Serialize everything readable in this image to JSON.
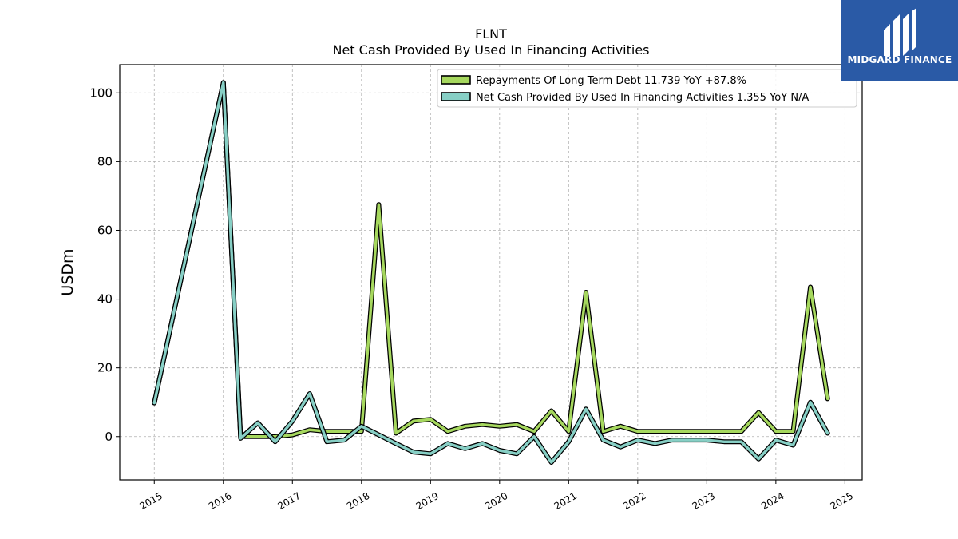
{
  "chart_data": {
    "type": "line",
    "title": "FLNT",
    "subtitle": "Net Cash Provided By Used In Financing Activities",
    "xlabel": "",
    "ylabel": "USDm",
    "xlim": [
      2014.5,
      2025.25
    ],
    "ylim": [
      -12.6,
      108.2
    ],
    "x_ticks": [
      "2015",
      "2016",
      "2017",
      "2018",
      "2019",
      "2020",
      "2021",
      "2022",
      "2023",
      "2024",
      "2025"
    ],
    "y_ticks": [
      "0",
      "20",
      "40",
      "60",
      "80",
      "100"
    ],
    "grid": true,
    "legend_position": "top-right",
    "series": [
      {
        "name": "Repayments Of Long Term Debt",
        "legend_label": "Repayments Of Long Term Debt  11.739 YoY +87.8%",
        "color": "#a6d85e",
        "points": [
          [
            "2015-01-01",
            9.8
          ],
          [
            "2016-01-01",
            103.0
          ],
          [
            "2016-04-01",
            0.0
          ],
          [
            "2016-07-01",
            0.0
          ],
          [
            "2016-10-01",
            0.0
          ],
          [
            "2017-01-01",
            0.5
          ],
          [
            "2017-04-01",
            2.0
          ],
          [
            "2017-07-01",
            1.5
          ],
          [
            "2017-10-01",
            1.5
          ],
          [
            "2018-01-01",
            1.5
          ],
          [
            "2018-04-01",
            67.5
          ],
          [
            "2018-07-01",
            1.0
          ],
          [
            "2018-10-01",
            4.5
          ],
          [
            "2019-01-01",
            5.0
          ],
          [
            "2019-04-01",
            1.5
          ],
          [
            "2019-07-01",
            3.0
          ],
          [
            "2019-10-01",
            3.5
          ],
          [
            "2020-01-01",
            3.0
          ],
          [
            "2020-04-01",
            3.5
          ],
          [
            "2020-07-01",
            1.5
          ],
          [
            "2020-10-01",
            7.5
          ],
          [
            "2021-01-01",
            1.5
          ],
          [
            "2021-04-01",
            42.0
          ],
          [
            "2021-07-01",
            1.5
          ],
          [
            "2021-10-01",
            3.0
          ],
          [
            "2022-01-01",
            1.5
          ],
          [
            "2022-04-01",
            1.5
          ],
          [
            "2022-07-01",
            1.5
          ],
          [
            "2022-10-01",
            1.5
          ],
          [
            "2023-01-01",
            1.5
          ],
          [
            "2023-04-01",
            1.5
          ],
          [
            "2023-07-01",
            1.5
          ],
          [
            "2023-10-01",
            7.0
          ],
          [
            "2024-01-01",
            1.5
          ],
          [
            "2024-04-01",
            1.5
          ],
          [
            "2024-07-01",
            43.5
          ],
          [
            "2024-10-01",
            11.0
          ]
        ]
      },
      {
        "name": "Net Cash Provided By Used In Financing Activities",
        "legend_label": "Net Cash Provided By Used In Financing Activities  1.355 YoY N/A",
        "color": "#87cfc5",
        "points": [
          [
            "2015-01-01",
            9.8
          ],
          [
            "2016-01-01",
            103.0
          ],
          [
            "2016-04-01",
            -0.5
          ],
          [
            "2016-07-01",
            4.0
          ],
          [
            "2016-10-01",
            -1.5
          ],
          [
            "2017-01-01",
            4.5
          ],
          [
            "2017-04-01",
            12.5
          ],
          [
            "2017-07-01",
            -1.5
          ],
          [
            "2017-10-01",
            -1.0
          ],
          [
            "2018-01-01",
            3.0
          ],
          [
            "2018-04-01",
            0.5
          ],
          [
            "2018-07-01",
            -2.0
          ],
          [
            "2018-10-01",
            -4.5
          ],
          [
            "2019-01-01",
            -5.0
          ],
          [
            "2019-04-01",
            -2.0
          ],
          [
            "2019-07-01",
            -3.5
          ],
          [
            "2019-10-01",
            -2.0
          ],
          [
            "2020-01-01",
            -4.0
          ],
          [
            "2020-04-01",
            -5.0
          ],
          [
            "2020-07-01",
            0.0
          ],
          [
            "2020-10-01",
            -7.5
          ],
          [
            "2021-01-01",
            -1.5
          ],
          [
            "2021-04-01",
            8.0
          ],
          [
            "2021-07-01",
            -1.0
          ],
          [
            "2021-10-01",
            -3.0
          ],
          [
            "2022-01-01",
            -1.0
          ],
          [
            "2022-04-01",
            -2.0
          ],
          [
            "2022-07-01",
            -1.0
          ],
          [
            "2022-10-01",
            -1.0
          ],
          [
            "2023-01-01",
            -1.0
          ],
          [
            "2023-04-01",
            -1.5
          ],
          [
            "2023-07-01",
            -1.5
          ],
          [
            "2023-10-01",
            -6.5
          ],
          [
            "2024-01-01",
            -1.0
          ],
          [
            "2024-04-01",
            -2.5
          ],
          [
            "2024-07-01",
            10.0
          ],
          [
            "2024-10-01",
            1.0
          ]
        ]
      }
    ]
  },
  "logo": {
    "text": "MIDGARD FINANCE",
    "background": "#2a5aa6"
  }
}
